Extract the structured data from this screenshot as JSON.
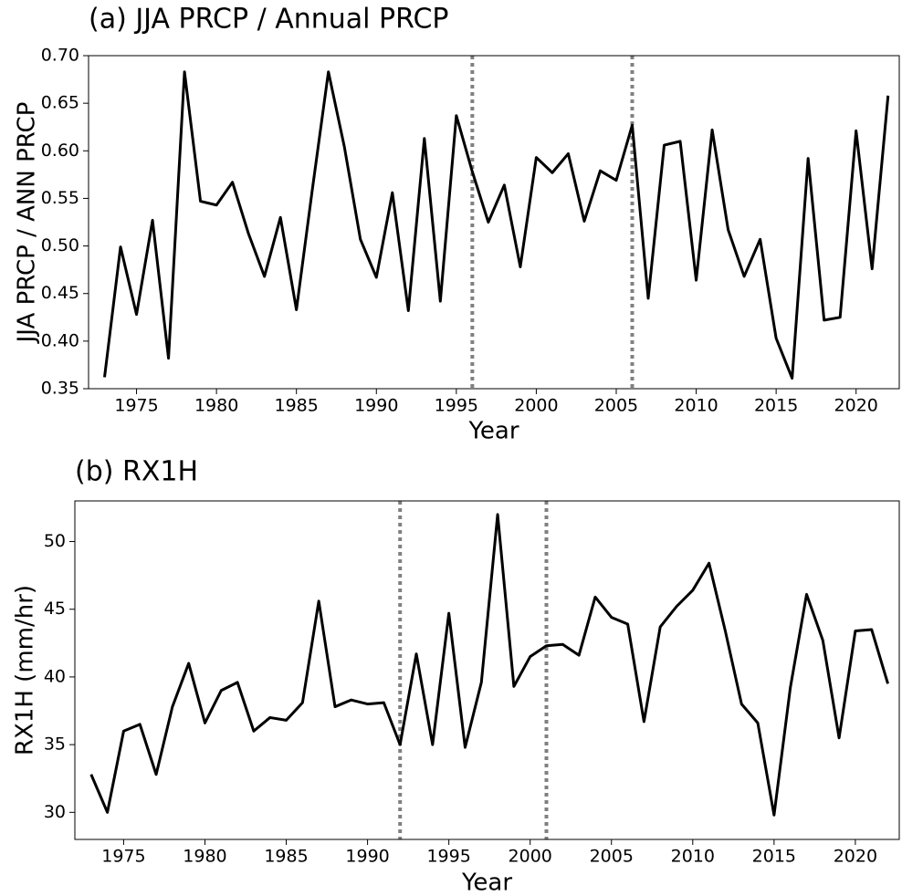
{
  "chart_data": [
    {
      "type": "line",
      "title": "(a) JJA PRCP / Annual PRCP",
      "x_label": "Year",
      "y_label": "JJA PRCP / ANN PRCP",
      "x": [
        1973,
        1974,
        1975,
        1976,
        1977,
        1978,
        1979,
        1980,
        1981,
        1982,
        1983,
        1984,
        1985,
        1986,
        1987,
        1988,
        1989,
        1990,
        1991,
        1992,
        1993,
        1994,
        1995,
        1996,
        1997,
        1998,
        1999,
        2000,
        2001,
        2002,
        2003,
        2004,
        2005,
        2006,
        2007,
        2008,
        2009,
        2010,
        2011,
        2012,
        2013,
        2014,
        2015,
        2016,
        2017,
        2018,
        2019,
        2020,
        2021,
        2022
      ],
      "series": [
        {
          "color": "#000000",
          "values": [
            0.362,
            0.499,
            0.428,
            0.527,
            0.382,
            0.683,
            0.547,
            0.543,
            0.567,
            0.513,
            0.468,
            0.53,
            0.433,
            0.56,
            0.683,
            0.604,
            0.507,
            0.467,
            0.556,
            0.432,
            0.613,
            0.442,
            0.637,
            0.578,
            0.525,
            0.564,
            0.478,
            0.593,
            0.577,
            0.597,
            0.526,
            0.579,
            0.569,
            0.627,
            0.445,
            0.606,
            0.61,
            0.464,
            0.622,
            0.517,
            0.468,
            0.507,
            0.403,
            0.361,
            0.592,
            0.422,
            0.425,
            0.621,
            0.476,
            0.658
          ]
        }
      ],
      "vlines": [
        1996,
        2006
      ],
      "vline_color": "#808080",
      "xlim": [
        1972,
        2022.7
      ],
      "xticks": [
        1975,
        1980,
        1985,
        1990,
        1995,
        2000,
        2005,
        2010,
        2015,
        2020
      ],
      "ylim": [
        0.35,
        0.7
      ],
      "yticks": [
        0.35,
        {
          "value": 0.4,
          "label": "0.40"
        },
        0.45,
        {
          "value": 0.5,
          "label": "0.50"
        },
        0.55,
        {
          "value": 0.6,
          "label": "0.60"
        },
        0.65,
        {
          "value": 0.7,
          "label": "0.70"
        }
      ]
    },
    {
      "type": "line",
      "title": "(b) RX1H",
      "x_label": "Year",
      "y_label": "RX1H (mm/hr)",
      "x": [
        1973,
        1974,
        1975,
        1976,
        1977,
        1978,
        1979,
        1980,
        1981,
        1982,
        1983,
        1984,
        1985,
        1986,
        1987,
        1988,
        1989,
        1990,
        1991,
        1992,
        1993,
        1994,
        1995,
        1996,
        1997,
        1998,
        1999,
        2000,
        2001,
        2002,
        2003,
        2004,
        2005,
        2006,
        2007,
        2008,
        2009,
        2010,
        2011,
        2012,
        2013,
        2014,
        2015,
        2016,
        2017,
        2018,
        2019,
        2020,
        2021,
        2022
      ],
      "series": [
        {
          "color": "#000000",
          "values": [
            32.8,
            30.0,
            36.0,
            36.5,
            32.8,
            37.8,
            41.0,
            36.6,
            39.0,
            39.6,
            36.0,
            37.0,
            36.8,
            38.1,
            45.6,
            37.8,
            38.3,
            38.0,
            38.1,
            35.0,
            41.7,
            35.0,
            44.7,
            34.8,
            39.6,
            52.0,
            39.3,
            41.5,
            42.3,
            42.4,
            41.6,
            45.9,
            44.4,
            43.9,
            36.7,
            43.7,
            45.2,
            46.4,
            48.4,
            43.4,
            38.0,
            36.6,
            29.8,
            39.2,
            46.1,
            42.7,
            35.5,
            43.4,
            43.5,
            39.5
          ]
        }
      ],
      "vlines": [
        1992,
        2001
      ],
      "vline_color": "#808080",
      "xlim": [
        1972,
        2022.7
      ],
      "xticks": [
        1975,
        1980,
        1985,
        1990,
        1995,
        2000,
        2005,
        2010,
        2015,
        2020
      ],
      "ylim": [
        28,
        53
      ],
      "yticks": [
        30,
        35,
        40,
        45,
        50
      ]
    }
  ]
}
